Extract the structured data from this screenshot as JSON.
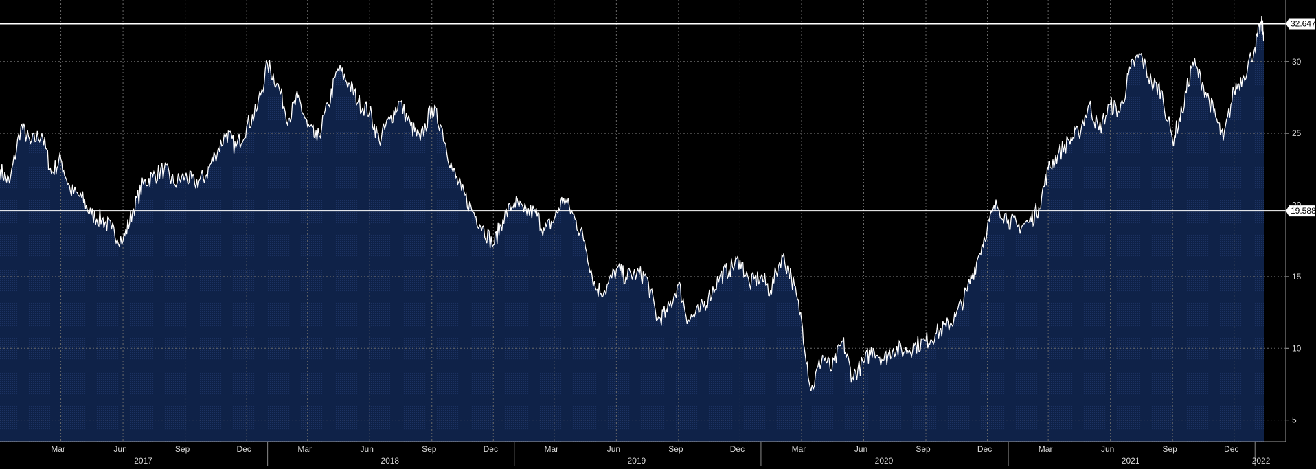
{
  "chart_data": {
    "type": "area",
    "title": "",
    "xlabel": "",
    "ylabel": "",
    "ylim": [
      3.5,
      34.3
    ],
    "y_ticks": [
      5,
      10,
      15,
      20,
      25,
      30
    ],
    "x_month_ticks": [
      {
        "label": "Mar",
        "date": "2017-03-01"
      },
      {
        "label": "Jun",
        "date": "2017-06-01"
      },
      {
        "label": "Sep",
        "date": "2017-09-01"
      },
      {
        "label": "Dec",
        "date": "2017-12-01"
      },
      {
        "label": "Mar",
        "date": "2018-03-01"
      },
      {
        "label": "Jun",
        "date": "2018-06-01"
      },
      {
        "label": "Sep",
        "date": "2018-09-01"
      },
      {
        "label": "Dec",
        "date": "2018-12-01"
      },
      {
        "label": "Mar",
        "date": "2019-03-01"
      },
      {
        "label": "Jun",
        "date": "2019-06-01"
      },
      {
        "label": "Sep",
        "date": "2019-09-01"
      },
      {
        "label": "Dec",
        "date": "2019-12-01"
      },
      {
        "label": "Mar",
        "date": "2020-03-01"
      },
      {
        "label": "Jun",
        "date": "2020-06-01"
      },
      {
        "label": "Sep",
        "date": "2020-09-01"
      },
      {
        "label": "Dec",
        "date": "2020-12-01"
      },
      {
        "label": "Mar",
        "date": "2021-03-01"
      },
      {
        "label": "Jun",
        "date": "2021-06-01"
      },
      {
        "label": "Sep",
        "date": "2021-09-01"
      },
      {
        "label": "Dec",
        "date": "2021-12-01"
      }
    ],
    "x_year_labels": [
      {
        "label": "2017",
        "date": "2017-07-01"
      },
      {
        "label": "2018",
        "date": "2018-07-01"
      },
      {
        "label": "2019",
        "date": "2019-07-01"
      },
      {
        "label": "2020",
        "date": "2020-07-01"
      },
      {
        "label": "2021",
        "date": "2021-07-01"
      },
      {
        "label": "2022",
        "date": "2022-01-10"
      }
    ],
    "year_dividers": [
      "2018-01-01",
      "2019-01-01",
      "2020-01-01",
      "2021-01-01",
      "2022-01-01"
    ],
    "reference_lines": [
      {
        "value": 32.647,
        "label": "32.647"
      },
      {
        "value": 19.588,
        "label": "19.588"
      }
    ],
    "series": [
      {
        "x": [
          "2016-12-01",
          "2016-12-15",
          "2017-01-01",
          "2017-01-15",
          "2017-02-01",
          "2017-02-15",
          "2017-03-01",
          "2017-03-15",
          "2017-04-01",
          "2017-04-15",
          "2017-05-01",
          "2017-05-15",
          "2017-06-01",
          "2017-06-15",
          "2017-07-01",
          "2017-07-15",
          "2017-08-01",
          "2017-08-15",
          "2017-09-01",
          "2017-09-15",
          "2017-10-01",
          "2017-10-15",
          "2017-11-01",
          "2017-11-15",
          "2017-12-01",
          "2017-12-15",
          "2018-01-01",
          "2018-01-15",
          "2018-02-01",
          "2018-02-15",
          "2018-03-01",
          "2018-03-15",
          "2018-04-01",
          "2018-04-15",
          "2018-05-01",
          "2018-05-15",
          "2018-06-01",
          "2018-06-15",
          "2018-07-01",
          "2018-07-15",
          "2018-08-01",
          "2018-08-15",
          "2018-09-01",
          "2018-09-15",
          "2018-10-01",
          "2018-10-15",
          "2018-11-01",
          "2018-11-15",
          "2018-12-01",
          "2018-12-15",
          "2019-01-01",
          "2019-01-15",
          "2019-02-01",
          "2019-02-15",
          "2019-03-01",
          "2019-03-15",
          "2019-04-01",
          "2019-04-15",
          "2019-05-01",
          "2019-05-15",
          "2019-06-01",
          "2019-06-15",
          "2019-07-01",
          "2019-07-15",
          "2019-08-01",
          "2019-08-15",
          "2019-09-01",
          "2019-09-15",
          "2019-10-01",
          "2019-10-15",
          "2019-11-01",
          "2019-11-15",
          "2019-12-01",
          "2019-12-15",
          "2020-01-01",
          "2020-01-15",
          "2020-02-01",
          "2020-02-15",
          "2020-03-01",
          "2020-03-15",
          "2020-04-01",
          "2020-04-15",
          "2020-05-01",
          "2020-05-15",
          "2020-06-01",
          "2020-06-15",
          "2020-07-01",
          "2020-07-15",
          "2020-08-01",
          "2020-08-15",
          "2020-09-01",
          "2020-09-15",
          "2020-10-01",
          "2020-10-15",
          "2020-11-01",
          "2020-11-15",
          "2020-12-01",
          "2020-12-15",
          "2021-01-01",
          "2021-01-15",
          "2021-02-01",
          "2021-02-15",
          "2021-03-01",
          "2021-03-15",
          "2021-04-01",
          "2021-04-15",
          "2021-05-01",
          "2021-05-15",
          "2021-06-01",
          "2021-06-15",
          "2021-07-01",
          "2021-07-15",
          "2021-08-01",
          "2021-08-15",
          "2021-09-01",
          "2021-09-15",
          "2021-10-01",
          "2021-10-15",
          "2021-11-01",
          "2021-11-15",
          "2021-12-01",
          "2021-12-15",
          "2022-01-01",
          "2022-01-10",
          "2022-01-14"
        ],
        "values": [
          22.5,
          21.5,
          25.5,
          24.3,
          25.0,
          22.2,
          23.2,
          21.0,
          20.5,
          19.3,
          19.0,
          18.3,
          17.5,
          19.5,
          21.5,
          22.0,
          22.5,
          21.5,
          22.0,
          21.5,
          22.0,
          23.5,
          25.0,
          24.0,
          25.5,
          26.5,
          29.8,
          28.5,
          26.0,
          27.5,
          25.5,
          24.5,
          27.0,
          29.5,
          28.5,
          27.2,
          26.5,
          24.5,
          26.0,
          27.2,
          25.5,
          24.5,
          26.8,
          25.5,
          22.5,
          21.0,
          19.5,
          18.5,
          17.2,
          19.0,
          20.2,
          19.5,
          19.5,
          18.2,
          19.0,
          20.5,
          19.0,
          17.5,
          14.2,
          14.0,
          15.5,
          15.0,
          15.2,
          15.0,
          12.0,
          12.5,
          14.5,
          12.0,
          12.5,
          13.5,
          15.0,
          15.5,
          16.2,
          14.5,
          15.0,
          14.0,
          16.5,
          15.0,
          12.0,
          7.0,
          9.5,
          8.5,
          10.5,
          8.0,
          9.0,
          10.0,
          9.2,
          10.0,
          9.8,
          10.2,
          10.5,
          11.0,
          11.5,
          12.2,
          14.0,
          16.0,
          18.5,
          20.0,
          19.0,
          18.5,
          18.8,
          19.8,
          22.5,
          23.5,
          24.5,
          25.0,
          27.0,
          25.2,
          27.0,
          26.5,
          29.5,
          30.5,
          28.5,
          28.0,
          24.5,
          26.5,
          30.0,
          28.5,
          26.5,
          24.5,
          28.0,
          29.0,
          31.0,
          32.647,
          32.0
        ]
      }
    ]
  }
}
